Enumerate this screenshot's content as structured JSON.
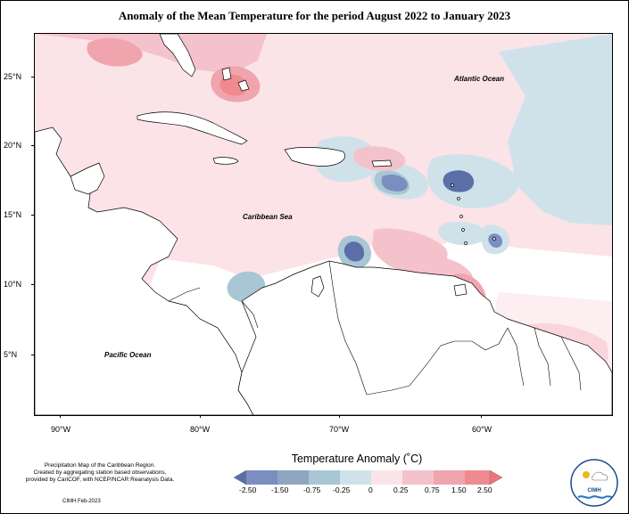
{
  "title": "Anomaly of the Mean Temperature for the period August 2022 to January 2023",
  "map": {
    "lat_labels": [
      "25°N",
      "20°N",
      "15°N",
      "10°N",
      "5°N"
    ],
    "lon_labels": [
      "90°W",
      "80°W",
      "70°W",
      "60°W"
    ],
    "regions": [
      "Atlantic Ocean",
      "Caribbean Sea",
      "Pacific Ocean"
    ]
  },
  "legend": {
    "title": "Temperature Anomaly (˚C)",
    "labels": [
      "-2.50",
      "-1.50",
      "-0.75",
      "-0.25",
      "0",
      "0.25",
      "0.75",
      "1.50",
      "2.50"
    ],
    "colors": [
      "#5a6fa8",
      "#7a8ec0",
      "#8fa5c0",
      "#a9c6d4",
      "#cfe2ea",
      "#fbe4e8",
      "#f4c2ca",
      "#f0a4ae",
      "#f08a8e",
      "#f2707a"
    ]
  },
  "credits": {
    "line1": "Precipitation Map of the Caribbean Region.",
    "line2": "Created by aggregating station based observations,",
    "line3": "provided by CariCOF, with NCEP/NCAR Reanalysis Data.",
    "date": "CIMH Feb-2023",
    "logo_text": "CIMH"
  }
}
